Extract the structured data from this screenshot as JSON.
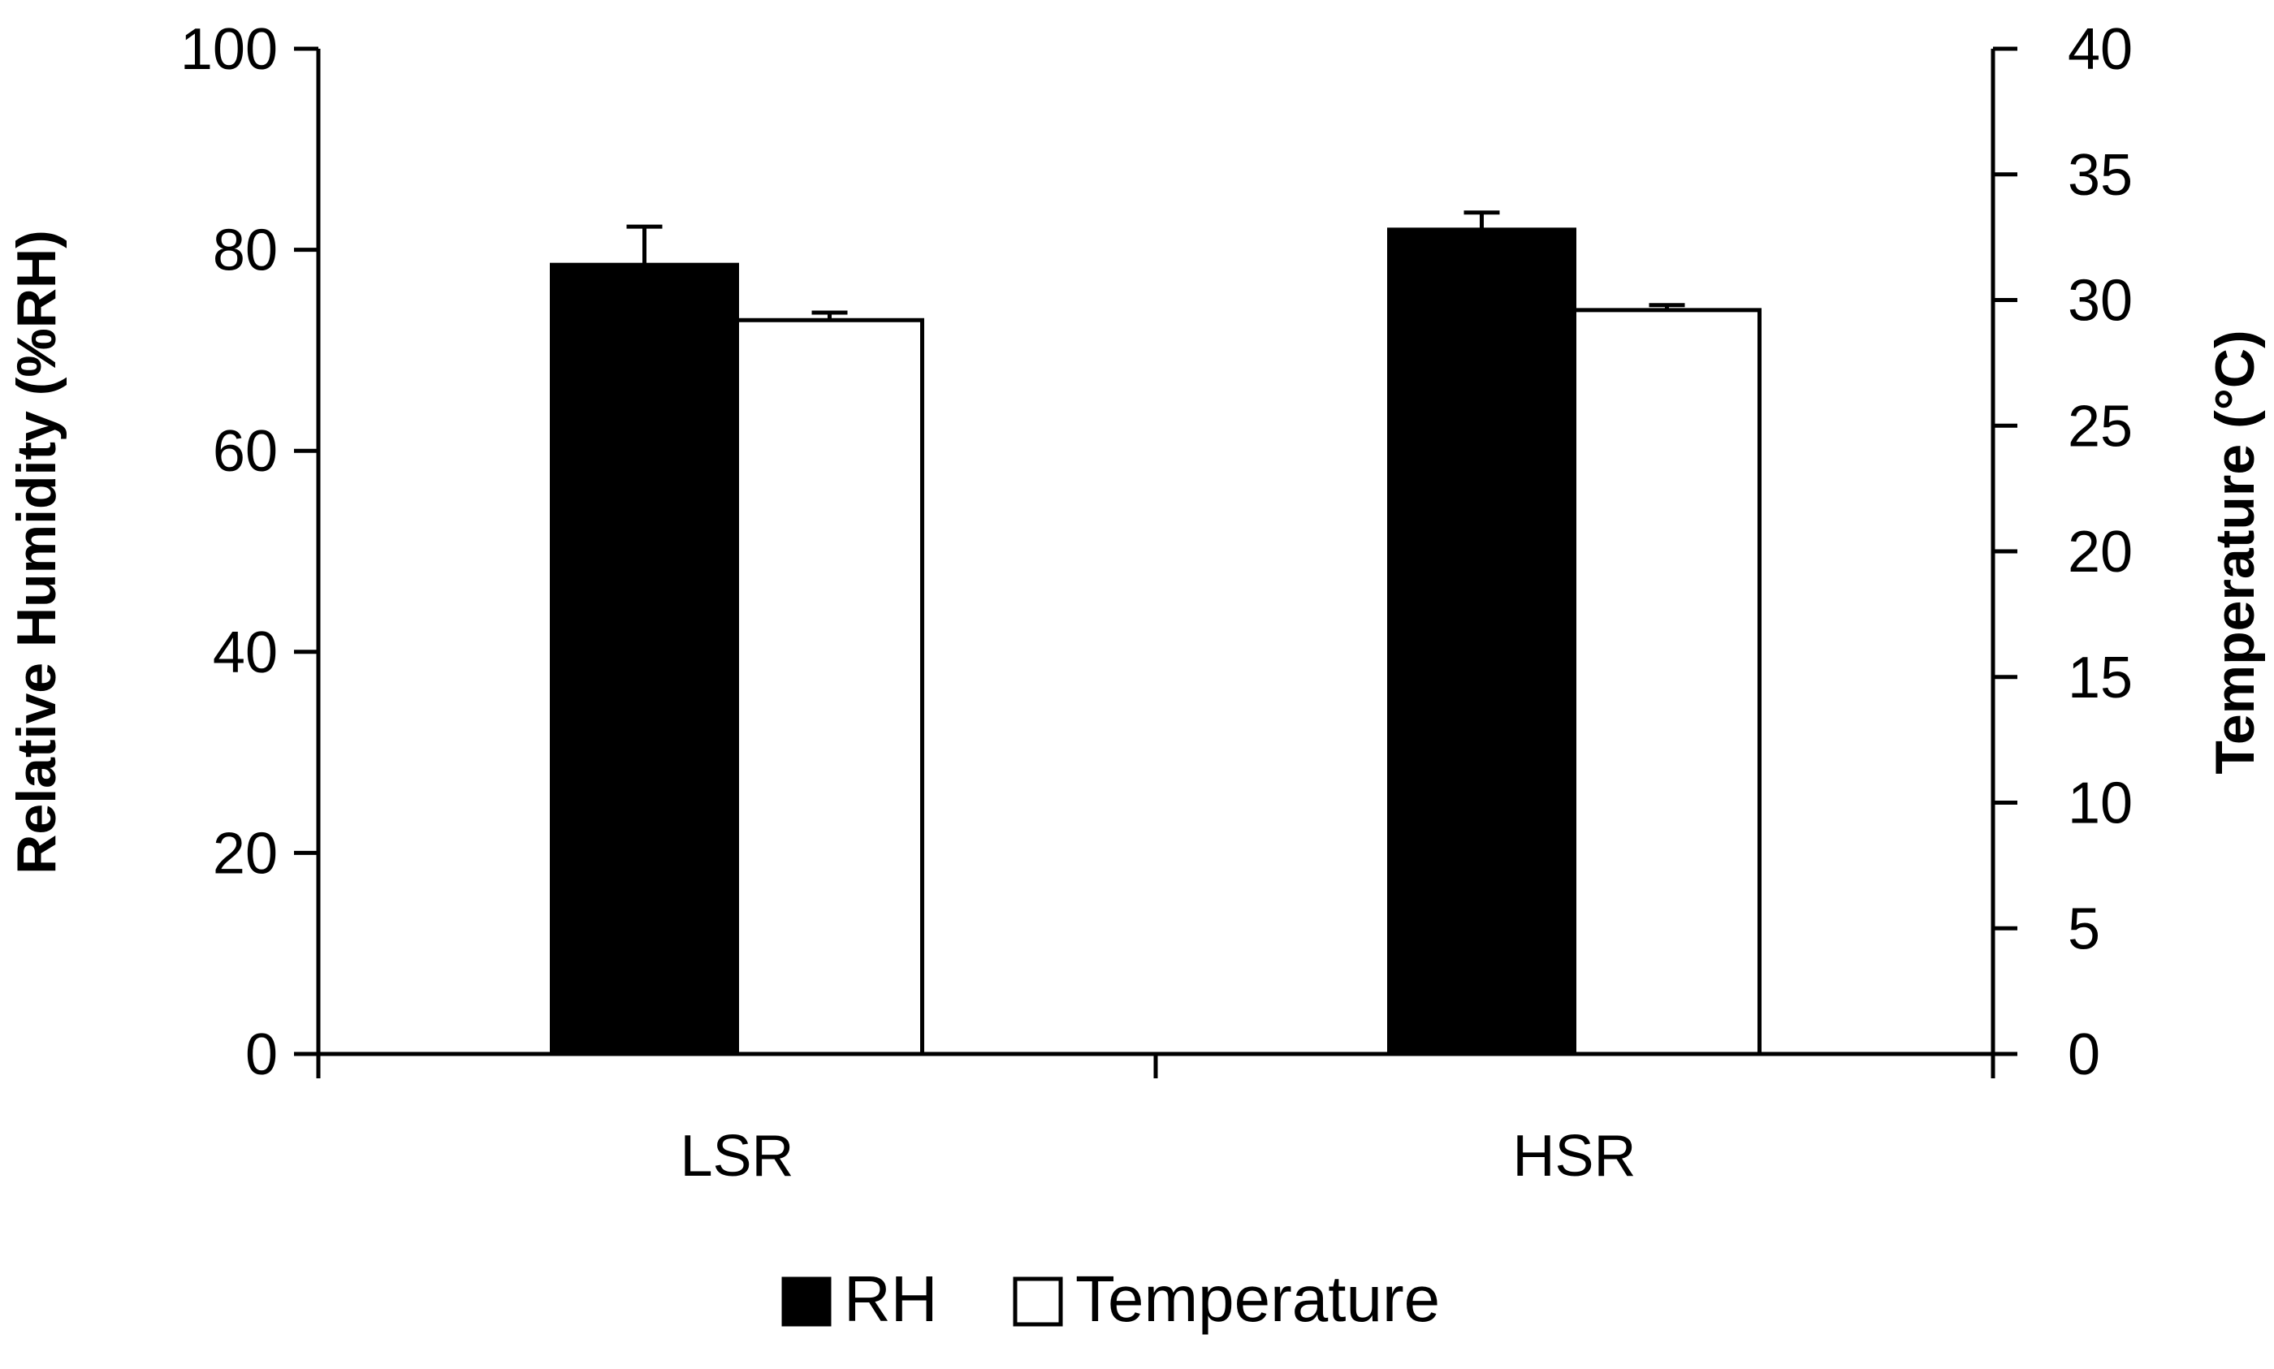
{
  "chart_data": {
    "type": "bar",
    "categories": [
      "LSR",
      "HSR"
    ],
    "series": [
      {
        "name": "RH",
        "axis": "left",
        "values": [
          78.5,
          82.0
        ],
        "error": [
          3.8,
          1.7
        ],
        "fill": "#000000"
      },
      {
        "name": "Temperature",
        "axis": "right",
        "values": [
          29.2,
          29.6
        ],
        "error": [
          0.3,
          0.2
        ],
        "fill": "#ffffff"
      }
    ],
    "ylabel": "Relative Humidity (%RH)",
    "y2label": "Temperature (°C)",
    "ylim": [
      0,
      100
    ],
    "y2lim": [
      0,
      40
    ],
    "yticks": [
      0,
      20,
      40,
      60,
      80,
      100
    ],
    "y2ticks": [
      0,
      5,
      10,
      15,
      20,
      25,
      30,
      35,
      40
    ],
    "grid": false,
    "legend_position": "bottom"
  }
}
